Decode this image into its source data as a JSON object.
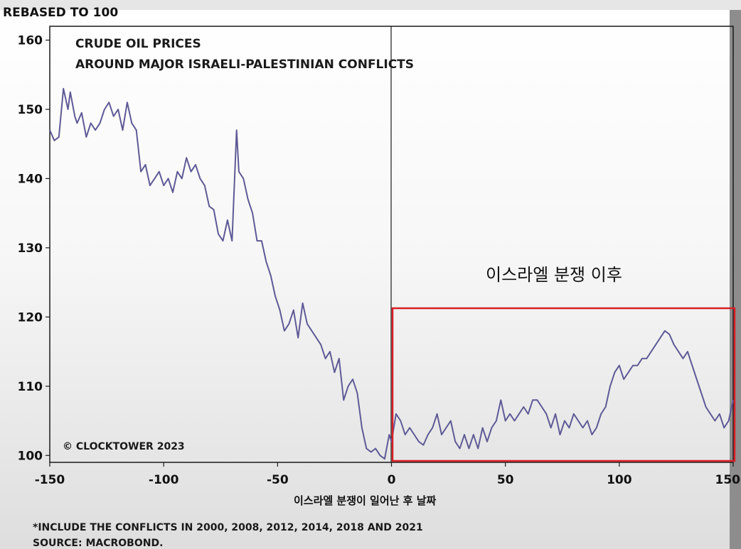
{
  "chart_data": {
    "type": "line",
    "title": "CRUDE OIL PRICES",
    "subtitle": "AROUND MAJOR ISRAELI-PALESTINIAN CONFLICTS",
    "ylabel": "REBASED TO 100",
    "xlabel": "이스라엘 분쟁이 일어난 후 날짜",
    "xlim": [
      -150,
      150
    ],
    "ylim": [
      99,
      162
    ],
    "x_ticks": [
      "-150",
      "-100",
      "-50",
      "0",
      "50",
      "100",
      "150"
    ],
    "y_ticks": [
      "100",
      "110",
      "120",
      "130",
      "140",
      "150",
      "160"
    ],
    "grid": false,
    "line_color": "#5e5a96",
    "highlight_color": "#d91f26",
    "annotation": "이스라엘 분쟁 이후",
    "credit": "© CLOCKTOWER 2023",
    "footnote": "*INCLUDE THE CONFLICTS IN 2000, 2008, 2012, 2014, 2018 AND 2021",
    "source": "SOURCE: MACROBOND.",
    "series": [
      {
        "x": [
          -150,
          -148,
          -146,
          -144,
          -142,
          -141,
          -139,
          -138,
          -136,
          -134,
          -132,
          -130,
          -128,
          -126,
          -124,
          -122,
          -120,
          -118,
          -116,
          -114,
          -112,
          -110,
          -108,
          -106,
          -104,
          -102,
          -100,
          -98,
          -96,
          -94,
          -92,
          -90,
          -88,
          -86,
          -84,
          -82,
          -80,
          -78,
          -76,
          -74,
          -72,
          -70,
          -68,
          -67,
          -65,
          -63,
          -61,
          -59,
          -57,
          -55,
          -53,
          -51,
          -49,
          -47,
          -45,
          -43,
          -41,
          -39,
          -37,
          -35,
          -33,
          -31,
          -29,
          -27,
          -25,
          -23,
          -21,
          -19,
          -17,
          -15,
          -13,
          -11,
          -9,
          -7,
          -5,
          -3,
          -1,
          0,
          2,
          4,
          6,
          8,
          10,
          12,
          14,
          16,
          18,
          20,
          22,
          24,
          26,
          28,
          30,
          32,
          34,
          36,
          38,
          40,
          42,
          44,
          46,
          48,
          50,
          52,
          54,
          56,
          58,
          60,
          62,
          64,
          66,
          68,
          70,
          72,
          74,
          76,
          78,
          80,
          82,
          84,
          86,
          88,
          90,
          92,
          94,
          96,
          98,
          100,
          102,
          104,
          106,
          108,
          110,
          112,
          114,
          116,
          118,
          120,
          122,
          124,
          126,
          128,
          130,
          132,
          134,
          136,
          138,
          140,
          142,
          144,
          146,
          148,
          150
        ],
        "y": [
          147,
          145.5,
          146,
          153,
          150,
          152.5,
          149,
          148,
          149.5,
          146,
          148,
          147,
          148,
          150,
          151,
          149,
          150,
          147,
          151,
          148,
          147,
          141,
          142,
          139,
          140,
          141,
          139,
          140,
          138,
          141,
          140,
          143,
          141,
          142,
          140,
          139,
          136,
          135.5,
          132,
          131,
          134,
          131,
          147,
          141,
          140,
          137,
          135,
          131,
          131,
          128,
          126,
          123,
          121,
          118,
          119,
          121,
          117,
          122,
          119,
          118,
          117,
          116,
          114,
          115,
          112,
          114,
          108,
          110,
          111,
          109,
          104,
          101,
          100.5,
          101,
          100,
          99.5,
          103,
          102,
          106,
          105,
          103,
          104,
          103,
          102,
          101.5,
          103,
          104,
          106,
          103,
          104,
          105,
          102,
          101,
          103,
          101,
          103,
          101,
          104,
          102,
          104,
          105,
          108,
          105,
          106,
          105,
          106,
          107,
          106,
          108,
          108,
          107,
          106,
          104,
          106,
          103,
          105,
          104,
          106,
          105,
          104,
          105,
          103,
          104,
          106,
          107,
          110,
          112,
          113,
          111,
          112,
          113,
          113,
          114,
          114,
          115,
          116,
          117,
          118,
          117.5,
          116,
          115,
          114,
          115,
          113,
          111,
          109,
          107,
          106,
          105,
          106,
          104,
          105,
          108
        ]
      }
    ]
  }
}
